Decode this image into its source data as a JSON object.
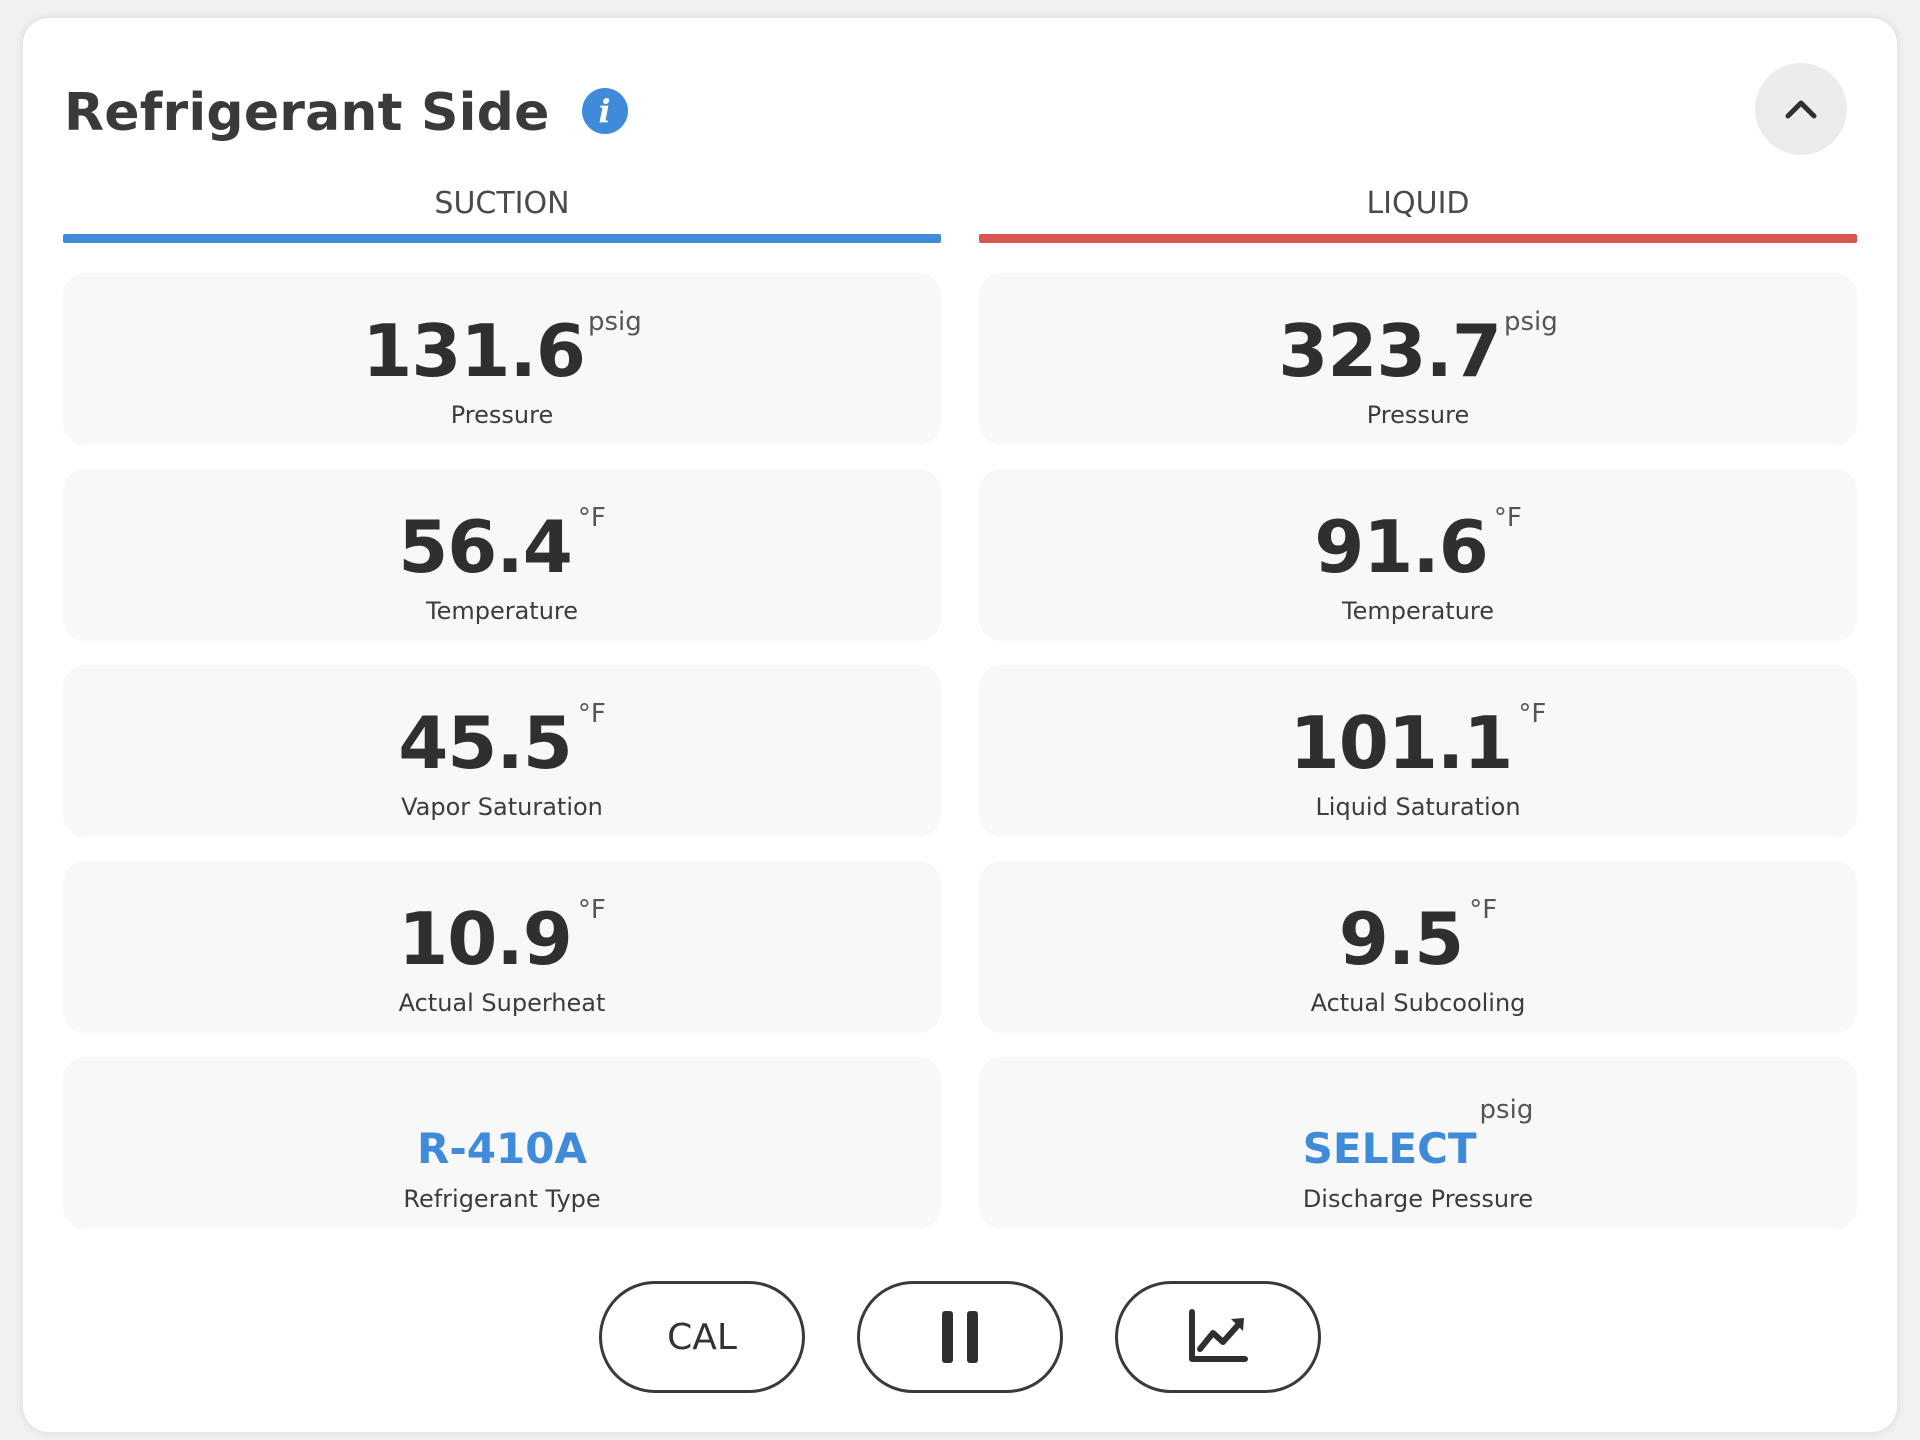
{
  "header": {
    "title": "Refrigerant Side",
    "info_icon": "info-icon",
    "collapse_icon": "chevron-up-icon"
  },
  "colors": {
    "suction_accent": "#3f8ad9",
    "liquid_accent": "#d9554f",
    "link": "#3f8ad9",
    "text_dark": "#2f2f2f"
  },
  "suction": {
    "heading": "SUCTION",
    "pressure": {
      "value": "131.6",
      "unit": "psig",
      "label": "Pressure"
    },
    "temperature": {
      "value": "56.4",
      "unit": "°F",
      "label": "Temperature"
    },
    "saturation": {
      "value": "45.5",
      "unit": "°F",
      "label": "Vapor Saturation"
    },
    "superheat": {
      "value": "10.9",
      "unit": "°F",
      "label": "Actual Superheat"
    },
    "refrigerant": {
      "value": "R-410A",
      "label": "Refrigerant Type"
    }
  },
  "liquid": {
    "heading": "LIQUID",
    "pressure": {
      "value": "323.7",
      "unit": "psig",
      "label": "Pressure"
    },
    "temperature": {
      "value": "91.6",
      "unit": "°F",
      "label": "Temperature"
    },
    "saturation": {
      "value": "101.1",
      "unit": "°F",
      "label": "Liquid Saturation"
    },
    "subcooling": {
      "value": "9.5",
      "unit": "°F",
      "label": "Actual Subcooling"
    },
    "discharge": {
      "value": "SELECT",
      "unit": "psig",
      "label": "Discharge Pressure"
    }
  },
  "toolbar": {
    "cal_label": "CAL",
    "pause_icon": "pause-icon",
    "chart_icon": "chart-icon"
  }
}
